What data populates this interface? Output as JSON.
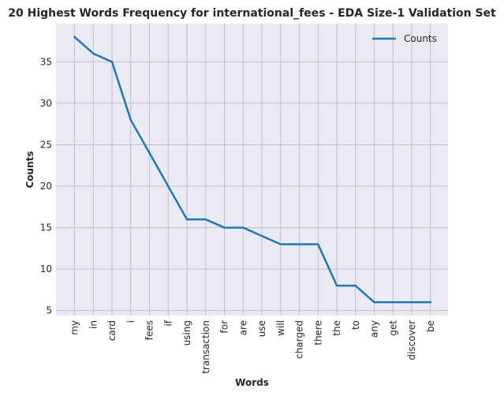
{
  "chart_data": {
    "type": "line",
    "title": "20 Highest Words Frequency for international_fees - EDA Size-1 Validation Set",
    "xlabel": "Words",
    "ylabel": "Counts",
    "categories": [
      "my",
      "in",
      "card",
      "i",
      "fees",
      "if",
      "using",
      "transaction",
      "for",
      "are",
      "use",
      "will",
      "charged",
      "there",
      "the",
      "to",
      "any",
      "get",
      "discover",
      "be"
    ],
    "series": [
      {
        "name": "Counts",
        "values": [
          38,
          36,
          35,
          28,
          24,
          20,
          16,
          16,
          15,
          15,
          14,
          13,
          13,
          13,
          8,
          8,
          6,
          6,
          6,
          6
        ]
      }
    ],
    "ylim": [
      4.4,
      39.6
    ],
    "yticks": [
      5,
      10,
      15,
      20,
      25,
      30,
      35
    ],
    "grid": true,
    "legend": "top-right",
    "colors": {
      "line": "#1f77b4",
      "plot_background": "#eaeaf2",
      "grid": "#c0c0c8"
    }
  }
}
